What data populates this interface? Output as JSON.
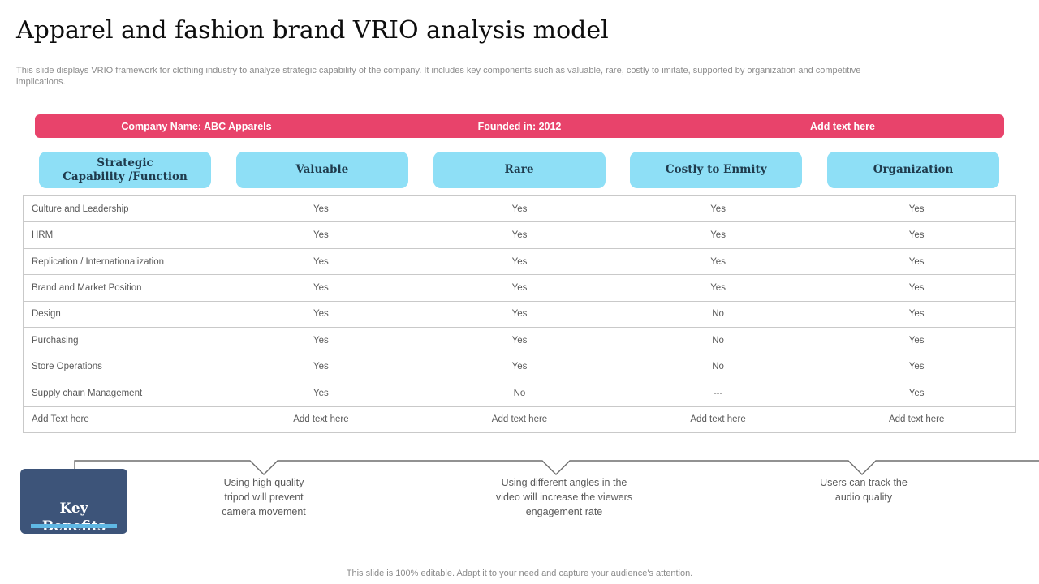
{
  "colors": {
    "banner_bg": "#E8436B",
    "header_button_bg": "#8EDFF6",
    "header_button_text": "#1F3B4D",
    "key_benefits_bg": "#3D5479",
    "key_benefits_bar": "#5FB8E4",
    "table_text": "#595959"
  },
  "slide": {
    "title": "Apparel and fashion brand VRIO analysis model",
    "subtitle": "This slide displays VRIO framework for clothing industry to analyze strategic capability of the company. It includes key components such as valuable, rare, costly to imitate, supported by organization and competitive implications.",
    "footer": "This slide is 100% editable. Adapt it to your need and capture your audience's attention."
  },
  "banner": {
    "items": [
      "Company Name: ABC Apparels",
      "Founded in: 2012",
      "Add text here"
    ]
  },
  "vrio_table": {
    "headers": [
      "Strategic\nCapability /Function",
      "Valuable",
      "Rare",
      "Costly to Enmity",
      "Organization"
    ],
    "rows": [
      [
        "Culture and Leadership",
        "Yes",
        "Yes",
        "Yes",
        "Yes"
      ],
      [
        "HRM",
        "Yes",
        "Yes",
        "Yes",
        "Yes"
      ],
      [
        "Replication / Internationalization",
        "Yes",
        "Yes",
        "Yes",
        "Yes"
      ],
      [
        "Brand and Market Position",
        "Yes",
        "Yes",
        "Yes",
        "Yes"
      ],
      [
        "Design",
        "Yes",
        "Yes",
        "No",
        "Yes"
      ],
      [
        "Purchasing",
        "Yes",
        "Yes",
        "No",
        "Yes"
      ],
      [
        "Store Operations",
        "Yes",
        "Yes",
        "No",
        "Yes"
      ],
      [
        "Supply chain Management",
        "Yes",
        "No",
        "---",
        "Yes"
      ],
      [
        "Add Text here",
        "Add text here",
        "Add text here",
        "Add text here",
        "Add text here"
      ]
    ]
  },
  "key_benefits": {
    "label": "Key\nBenefits",
    "items": [
      "Using high quality\ntripod will prevent\ncamera movement",
      "Using different angles in the\nvideo will increase the viewers\nengagement rate",
      "Users can track the\naudio quality"
    ]
  }
}
